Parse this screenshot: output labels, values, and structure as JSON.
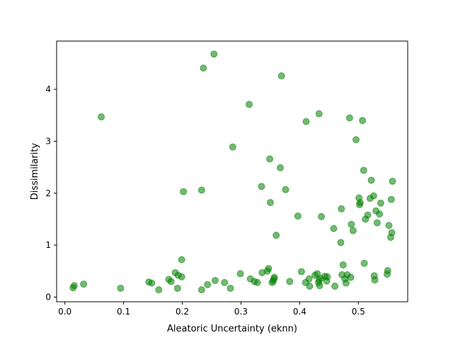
{
  "chart_data": {
    "type": "scatter",
    "title": "",
    "xlabel": "Aleatoric Uncertainty (eknn)",
    "ylabel": "Dissimilarity",
    "xlim": [
      -0.014,
      0.584
    ],
    "ylim": [
      -0.09,
      4.93
    ],
    "xticks": [
      0.0,
      0.1,
      0.2,
      0.3,
      0.4,
      0.5
    ],
    "xtick_labels": [
      "0.0",
      "0.1",
      "0.2",
      "0.3",
      "0.4",
      "0.5"
    ],
    "yticks": [
      0,
      1,
      2,
      3,
      4
    ],
    "ytick_labels": [
      "0",
      "1",
      "2",
      "3",
      "4"
    ],
    "grid": false,
    "legend": "none",
    "marker_color": "#008000",
    "marker_alpha": 0.55,
    "series": [
      {
        "x": [
          0.014,
          0.016,
          0.032,
          0.062,
          0.095,
          0.143,
          0.148,
          0.16,
          0.177,
          0.181,
          0.188,
          0.192,
          0.193,
          0.199,
          0.199,
          0.202,
          0.233,
          0.233,
          0.236,
          0.243,
          0.254,
          0.256,
          0.272,
          0.282,
          0.286,
          0.299,
          0.314,
          0.316,
          0.323,
          0.328,
          0.335,
          0.336,
          0.345,
          0.347,
          0.349,
          0.35,
          0.353,
          0.355,
          0.356,
          0.357,
          0.36,
          0.367,
          0.369,
          0.376,
          0.383,
          0.397,
          0.403,
          0.41,
          0.411,
          0.416,
          0.417,
          0.426,
          0.43,
          0.432,
          0.433,
          0.434,
          0.436,
          0.437,
          0.443,
          0.446,
          0.447,
          0.458,
          0.46,
          0.47,
          0.471,
          0.472,
          0.474,
          0.477,
          0.479,
          0.481,
          0.485,
          0.487,
          0.488,
          0.491,
          0.496,
          0.501,
          0.502,
          0.503,
          0.507,
          0.509,
          0.51,
          0.512,
          0.516,
          0.52,
          0.522,
          0.526,
          0.527,
          0.528,
          0.53,
          0.532,
          0.536,
          0.538,
          0.549,
          0.55,
          0.552,
          0.555,
          0.557,
          0.558
        ],
        "y": [
          0.18,
          0.22,
          0.25,
          3.47,
          0.17,
          0.29,
          0.27,
          0.14,
          0.34,
          0.3,
          0.47,
          0.17,
          0.42,
          0.72,
          0.39,
          2.03,
          0.14,
          2.06,
          4.41,
          0.24,
          4.68,
          0.32,
          0.28,
          0.17,
          2.89,
          0.45,
          3.71,
          0.35,
          0.3,
          0.28,
          2.13,
          0.47,
          0.5,
          0.55,
          2.66,
          1.82,
          0.28,
          0.31,
          0.35,
          0.38,
          1.19,
          2.49,
          4.26,
          2.07,
          0.3,
          1.56,
          0.49,
          0.28,
          3.38,
          0.35,
          0.21,
          0.42,
          0.45,
          0.28,
          0.33,
          0.22,
          0.36,
          1.55,
          0.4,
          0.31,
          0.39,
          1.32,
          0.21,
          1.05,
          1.7,
          0.43,
          0.62,
          0.35,
          0.27,
          0.43,
          3.45,
          0.38,
          1.4,
          1.28,
          3.03,
          1.91,
          1.78,
          1.82,
          3.4,
          2.44,
          0.65,
          1.5,
          1.58,
          1.9,
          2.25,
          1.95,
          0.41,
          0.33,
          1.66,
          1.43,
          1.6,
          1.81,
          0.44,
          0.51,
          1.38,
          1.15,
          1.24,
          2.23
        ]
      },
      {
        "x": [
          0.433,
          0.556
        ],
        "y": [
          3.53,
          1.88
        ]
      }
    ]
  }
}
